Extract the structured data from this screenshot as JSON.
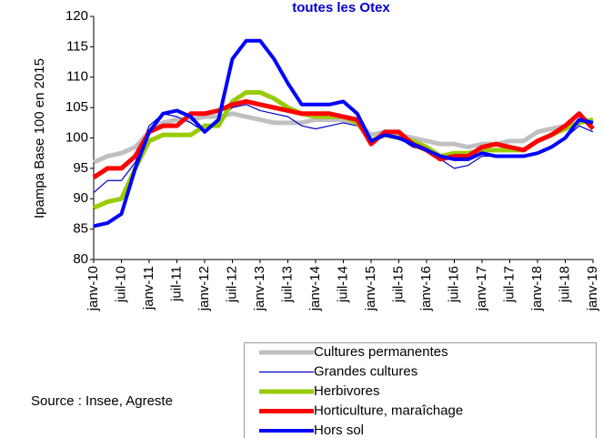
{
  "chart_data": {
    "type": "line",
    "title": "toutes les Otex",
    "y_label": "Ipampa  Base 100 en  2015",
    "annotations": [
      "Source : Insee, Agreste"
    ],
    "categories": [
      "janv-10",
      null,
      "juil-10",
      null,
      "janv-11",
      null,
      "juil-11",
      null,
      "janv-12",
      null,
      "juil-12",
      null,
      "janv-13",
      null,
      "juil-13",
      null,
      "janv-14",
      null,
      "juil-14",
      null,
      "janv-15",
      null,
      "juil-15",
      null,
      "janv-16",
      null,
      "juil-16",
      null,
      "janv-17",
      null,
      "juil-17",
      null,
      "janv-18",
      null,
      "juil-18",
      null,
      "janv-19"
    ],
    "ylim": [
      80,
      120
    ],
    "yticks": [
      80,
      85,
      90,
      95,
      100,
      105,
      110,
      115,
      120
    ],
    "grid": false,
    "legend": "bottom-right",
    "series": [
      {
        "name": "Cultures permanentes",
        "color": "#c0c0c0",
        "width": 5,
        "values": [
          96,
          97,
          97.5,
          98.5,
          101,
          102.5,
          103,
          103,
          103.5,
          103.5,
          104,
          103.5,
          103,
          102.5,
          102.5,
          102.5,
          103,
          103,
          103,
          102.5,
          100.5,
          101,
          100.5,
          100,
          99.5,
          99,
          99,
          98.5,
          99,
          99,
          99.5,
          99.5,
          101,
          101.5,
          102,
          102.5,
          103
        ]
      },
      {
        "name": "Grandes cultures",
        "color": "#0000cc",
        "width": 1.2,
        "values": [
          91,
          93,
          93,
          96,
          102,
          104,
          103.5,
          102.5,
          101,
          103,
          105,
          105.5,
          104.5,
          104,
          103.5,
          102,
          101.5,
          102,
          102.5,
          102,
          99.5,
          100.5,
          100,
          98.5,
          98,
          96.5,
          95,
          95.5,
          97,
          97,
          97,
          97,
          97.5,
          98.5,
          100,
          102,
          101
        ]
      },
      {
        "name": "Herbivores",
        "color": "#99cc00",
        "width": 5,
        "values": [
          88.5,
          89.5,
          90,
          95,
          99.5,
          100.5,
          100.5,
          100.5,
          102,
          102,
          106,
          107.5,
          107.5,
          106.5,
          105,
          104,
          103.5,
          103.5,
          103.5,
          102.5,
          99.5,
          100.5,
          100,
          99.5,
          98.5,
          97,
          97.5,
          97.5,
          98,
          98,
          98,
          98,
          99.5,
          100.5,
          101.5,
          102.5,
          103
        ]
      },
      {
        "name": "Horticulture, maraîchage",
        "color": "#ff0000",
        "width": 5,
        "values": [
          93.5,
          95,
          95,
          97,
          101,
          102,
          102,
          104,
          104,
          104.5,
          105.5,
          106,
          105.5,
          105,
          104.5,
          104,
          104,
          104,
          103.5,
          103,
          99,
          101,
          101,
          99,
          98,
          96.5,
          97,
          97,
          98.5,
          99,
          98.5,
          98,
          99.5,
          100.5,
          102,
          104,
          101.5
        ]
      },
      {
        "name": "Hors sol",
        "color": "#0000ff",
        "width": 4,
        "values": [
          85.5,
          86,
          87.5,
          95,
          101,
          104,
          104.5,
          103.5,
          101,
          103,
          113,
          116,
          116,
          113,
          109,
          105.5,
          105.5,
          105.5,
          106,
          104,
          99.5,
          100.5,
          100,
          99,
          98,
          97,
          96.5,
          96.5,
          97.5,
          97,
          97,
          97,
          97.5,
          98.5,
          100,
          103,
          102.5
        ]
      }
    ]
  }
}
